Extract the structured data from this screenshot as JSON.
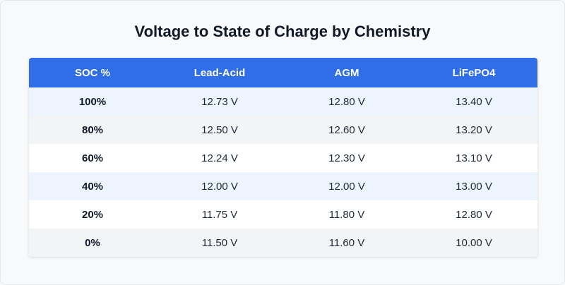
{
  "title": "Voltage to State of Charge by Chemistry",
  "colors": {
    "header_bg": "#2f6ee6",
    "header_text": "#ffffff",
    "row_tint_blue": "#eef4fd",
    "row_tint_gray": "#f2f4f6",
    "row_white": "#ffffff"
  },
  "chart_data": {
    "type": "table",
    "title": "Voltage to State of Charge by Chemistry",
    "columns": [
      "SOC %",
      "Lead-Acid",
      "AGM",
      "LiFePO4"
    ],
    "rows": [
      {
        "soc": "100%",
        "cells": [
          "12.73 V",
          "12.80 V",
          "13.40 V"
        ],
        "tint": "#eef4fd"
      },
      {
        "soc": "80%",
        "cells": [
          "12.50 V",
          "12.60 V",
          "13.20 V"
        ],
        "tint": "#f2f4f6"
      },
      {
        "soc": "60%",
        "cells": [
          "12.24 V",
          "12.30 V",
          "13.10 V"
        ],
        "tint": "#ffffff"
      },
      {
        "soc": "40%",
        "cells": [
          "12.00 V",
          "12.00 V",
          "13.00 V"
        ],
        "tint": "#eef4fd"
      },
      {
        "soc": "20%",
        "cells": [
          "11.75 V",
          "11.80 V",
          "12.80 V"
        ],
        "tint": "#ffffff"
      },
      {
        "soc": "0%",
        "cells": [
          "11.50 V",
          "11.60 V",
          "10.00 V"
        ],
        "tint": "#f2f4f6"
      }
    ]
  }
}
